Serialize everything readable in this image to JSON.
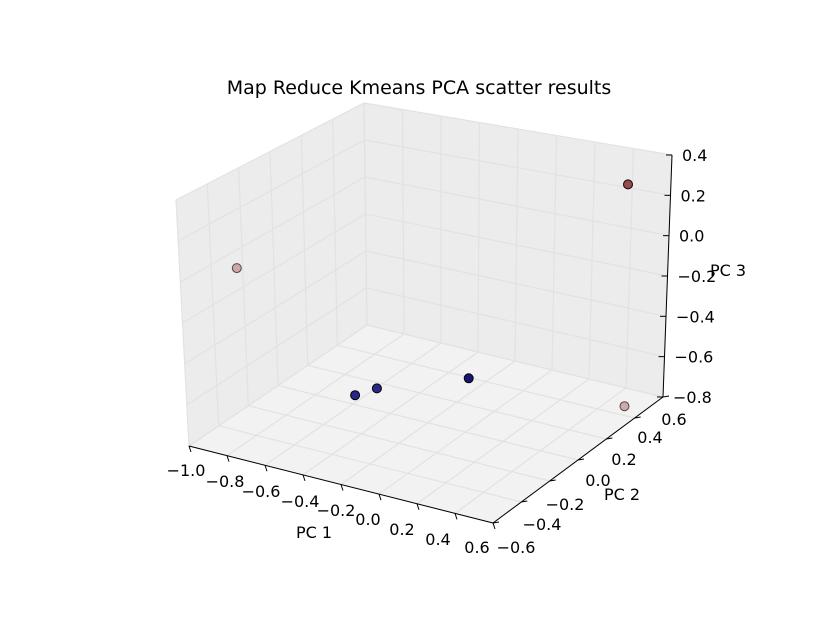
{
  "chart_data": {
    "type": "scatter",
    "projection": "3d",
    "title": "Map Reduce Kmeans PCA scatter results",
    "xlabel": "PC 1",
    "ylabel": "PC 2",
    "zlabel": "PC 3",
    "xlim": [
      -1.0,
      0.6
    ],
    "ylim": [
      -0.6,
      0.6
    ],
    "zlim": [
      -0.8,
      0.4
    ],
    "x_ticks": [
      "−1.0",
      "−0.8",
      "−0.6",
      "−0.4",
      "−0.2",
      "0.0",
      "0.2",
      "0.4",
      "0.6"
    ],
    "y_ticks": [
      "−0.6",
      "−0.4",
      "−0.2",
      "0.0",
      "0.2",
      "0.4",
      "0.6"
    ],
    "z_ticks": [
      "−0.8",
      "−0.6",
      "−0.4",
      "−0.2",
      "0.0",
      "0.2",
      "0.4"
    ],
    "grid": true,
    "legend": "none",
    "pane_colors": {
      "floor": "#f2f2f2",
      "walls": "#ececec"
    },
    "points": [
      {
        "x": 0.45,
        "y": 0.5,
        "z": 0.28,
        "color": "#8b2f2f",
        "alpha": 0.85
      },
      {
        "x": -0.95,
        "y": -0.3,
        "z": -0.05,
        "color": "#b86e6e",
        "alpha": 0.55
      },
      {
        "x": 0.58,
        "y": 0.35,
        "z": -0.72,
        "color": "#b86e6e",
        "alpha": 0.55
      },
      {
        "x": -0.2,
        "y": 0.28,
        "z": -0.72,
        "color": "#0b0b6b",
        "alpha": 0.95
      },
      {
        "x": -0.55,
        "y": 0.1,
        "z": -0.76,
        "color": "#12127a",
        "alpha": 0.9
      },
      {
        "x": -0.62,
        "y": 0.04,
        "z": -0.78,
        "color": "#12127a",
        "alpha": 0.9
      }
    ]
  }
}
